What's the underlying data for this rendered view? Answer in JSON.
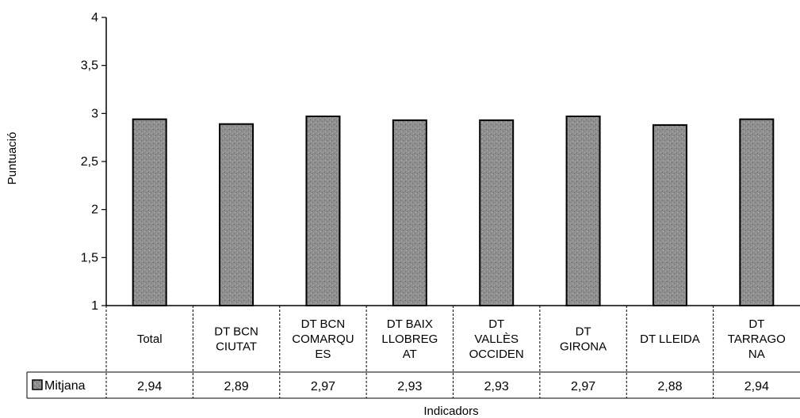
{
  "chart_data": {
    "type": "bar",
    "categories": [
      [
        "Total"
      ],
      [
        "DT BCN",
        "CIUTAT"
      ],
      [
        "DT BCN",
        "COMARQU",
        "ES"
      ],
      [
        "DT BAIX",
        "LLOBREG",
        "AT"
      ],
      [
        "DT",
        "VALLÈS",
        "OCCIDEN"
      ],
      [
        "DT",
        "GIRONA"
      ],
      [
        "DT LLEIDA"
      ],
      [
        "DT",
        "TARRAGO",
        "NA"
      ]
    ],
    "series": [
      {
        "name": "Mitjana",
        "values": [
          2.94,
          2.89,
          2.97,
          2.93,
          2.93,
          2.97,
          2.88,
          2.94
        ],
        "value_labels": [
          "2,94",
          "2,89",
          "2,97",
          "2,93",
          "2,93",
          "2,97",
          "2,88",
          "2,94"
        ]
      }
    ],
    "xlabel": "Indicadors",
    "ylabel": "Puntuació",
    "ylim": [
      1,
      4
    ],
    "yticks": [
      1,
      1.5,
      2,
      2.5,
      3,
      3.5,
      4
    ],
    "ytick_labels": [
      "1",
      "1,5",
      "2",
      "2,5",
      "3",
      "3,5",
      "4"
    ],
    "legend_placement": "data-table-left",
    "grid": false,
    "colors": {
      "bar_fill": "#8f8f8f",
      "bar_stroke": "#000000",
      "axis": "#000000"
    }
  }
}
